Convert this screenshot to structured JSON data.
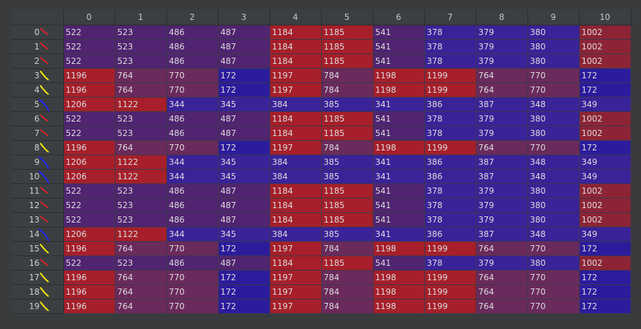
{
  "columns": [
    "0",
    "1",
    "2",
    "3",
    "4",
    "5",
    "6",
    "7",
    "8",
    "9",
    "10"
  ],
  "colors": {
    "high": "#a61f2a",
    "mid_high": "#8c2436",
    "mid": "#6a2a5c",
    "mid_low": "#502470",
    "low": "#3a2299",
    "lowest": "#2c1c9c"
  },
  "rows": [
    {
      "label": "0",
      "icon": "red-stroke-icon",
      "cells": [
        "522",
        "523",
        "486",
        "487",
        "1184",
        "1185",
        "541",
        "378",
        "379",
        "380",
        "1002"
      ]
    },
    {
      "label": "1",
      "icon": "red-stroke-icon",
      "cells": [
        "522",
        "523",
        "486",
        "487",
        "1184",
        "1185",
        "541",
        "378",
        "379",
        "380",
        "1002"
      ]
    },
    {
      "label": "2",
      "icon": "red-stroke-icon",
      "cells": [
        "522",
        "523",
        "486",
        "487",
        "1184",
        "1185",
        "541",
        "378",
        "379",
        "380",
        "1002"
      ]
    },
    {
      "label": "3",
      "icon": "yellow-stroke-icon",
      "cells": [
        "1196",
        "764",
        "770",
        "172",
        "1197",
        "784",
        "1198",
        "1199",
        "764",
        "770",
        "172"
      ]
    },
    {
      "label": "4",
      "icon": "yellow-stroke-icon",
      "cells": [
        "1196",
        "764",
        "770",
        "172",
        "1197",
        "784",
        "1198",
        "1199",
        "764",
        "770",
        "172"
      ]
    },
    {
      "label": "5",
      "icon": "blue-stroke-icon",
      "cells": [
        "1206",
        "1122",
        "344",
        "345",
        "384",
        "385",
        "341",
        "386",
        "387",
        "348",
        "349"
      ]
    },
    {
      "label": "6",
      "icon": "red-stroke-icon",
      "cells": [
        "522",
        "523",
        "486",
        "487",
        "1184",
        "1185",
        "541",
        "378",
        "379",
        "380",
        "1002"
      ]
    },
    {
      "label": "7",
      "icon": "red-stroke-icon",
      "cells": [
        "522",
        "523",
        "486",
        "487",
        "1184",
        "1185",
        "541",
        "378",
        "379",
        "380",
        "1002"
      ]
    },
    {
      "label": "8",
      "icon": "yellow-stroke-icon",
      "cells": [
        "1196",
        "764",
        "770",
        "172",
        "1197",
        "784",
        "1198",
        "1199",
        "764",
        "770",
        "172"
      ]
    },
    {
      "label": "9",
      "icon": "blue-stroke-icon",
      "cells": [
        "1206",
        "1122",
        "344",
        "345",
        "384",
        "385",
        "341",
        "386",
        "387",
        "348",
        "349"
      ]
    },
    {
      "label": "10",
      "icon": "blue-stroke-icon",
      "cells": [
        "1206",
        "1122",
        "344",
        "345",
        "384",
        "385",
        "341",
        "386",
        "387",
        "348",
        "349"
      ]
    },
    {
      "label": "11",
      "icon": "red-stroke-icon",
      "cells": [
        "522",
        "523",
        "486",
        "487",
        "1184",
        "1185",
        "541",
        "378",
        "379",
        "380",
        "1002"
      ]
    },
    {
      "label": "12",
      "icon": "red-stroke-icon",
      "cells": [
        "522",
        "523",
        "486",
        "487",
        "1184",
        "1185",
        "541",
        "378",
        "379",
        "380",
        "1002"
      ]
    },
    {
      "label": "13",
      "icon": "red-stroke-icon",
      "cells": [
        "522",
        "523",
        "486",
        "487",
        "1184",
        "1185",
        "541",
        "378",
        "379",
        "380",
        "1002"
      ]
    },
    {
      "label": "14",
      "icon": "blue-stroke-icon",
      "cells": [
        "1206",
        "1122",
        "344",
        "345",
        "384",
        "385",
        "341",
        "386",
        "387",
        "348",
        "349"
      ]
    },
    {
      "label": "15",
      "icon": "yellow-stroke-icon",
      "cells": [
        "1196",
        "764",
        "770",
        "172",
        "1197",
        "784",
        "1198",
        "1199",
        "764",
        "770",
        "172"
      ]
    },
    {
      "label": "16",
      "icon": "red-stroke-icon",
      "cells": [
        "522",
        "523",
        "486",
        "487",
        "1184",
        "1185",
        "541",
        "378",
        "379",
        "380",
        "1002"
      ]
    },
    {
      "label": "17",
      "icon": "yellow-stroke-icon",
      "cells": [
        "1196",
        "764",
        "770",
        "172",
        "1197",
        "784",
        "1198",
        "1199",
        "764",
        "770",
        "172"
      ]
    },
    {
      "label": "18",
      "icon": "yellow-stroke-icon",
      "cells": [
        "1196",
        "764",
        "770",
        "172",
        "1197",
        "784",
        "1198",
        "1199",
        "764",
        "770",
        "172"
      ]
    },
    {
      "label": "19",
      "icon": "yellow-stroke-icon",
      "cells": [
        "1196",
        "764",
        "770",
        "172",
        "1197",
        "784",
        "1198",
        "1199",
        "764",
        "770",
        "172"
      ]
    }
  ]
}
